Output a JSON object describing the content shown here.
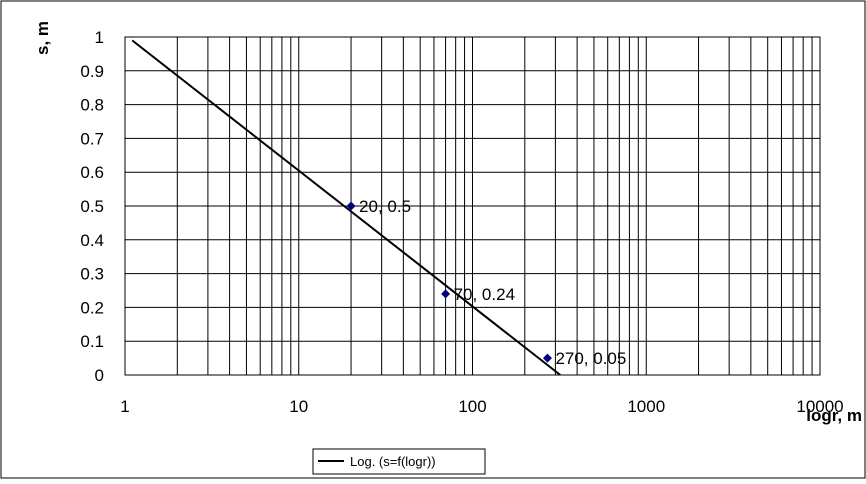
{
  "chart_data": {
    "type": "scatter",
    "x_scale": "log",
    "xlim": [
      1,
      10000
    ],
    "ylim": [
      0,
      1
    ],
    "xlabel": "logr, m",
    "ylabel": "s, m",
    "x_ticks": [
      "1",
      "10",
      "100",
      "1000",
      "10000"
    ],
    "y_ticks": [
      "0",
      "0.1",
      "0.2",
      "0.3",
      "0.4",
      "0.5",
      "0.6",
      "0.7",
      "0.8",
      "0.9",
      "1"
    ],
    "grid": true,
    "legend_position": "bottom",
    "series": [
      {
        "marker": "diamond",
        "color": "#000080",
        "points": [
          {
            "x": 20,
            "y": 0.5,
            "label": "20, 0.5"
          },
          {
            "x": 70,
            "y": 0.24,
            "label": "70, 0.24"
          },
          {
            "x": 270,
            "y": 0.05,
            "label": "270, 0.05"
          }
        ]
      }
    ],
    "trendline": {
      "name": "Log. (s=f(logr))",
      "color": "#000000",
      "points": [
        {
          "x": 1.1,
          "y": 0.99
        },
        {
          "x": 320,
          "y": 0
        }
      ]
    }
  }
}
